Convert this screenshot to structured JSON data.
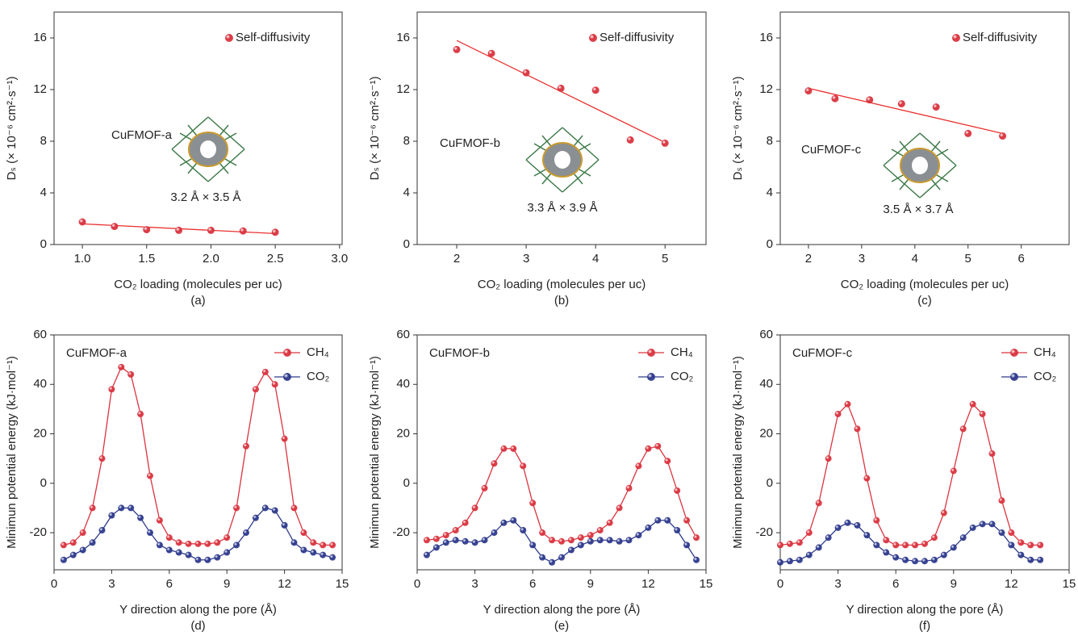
{
  "chart_data": [
    {
      "type": "scatter",
      "panel_label": "(a)",
      "xlabel": "CO₂ loading (molecules per uc)",
      "ylabel": "Dₛ (× 10⁻⁶ cm²·s⁻¹)",
      "annotations": [
        "CuFMOF-a",
        "3.2 Å × 3.5 Å"
      ],
      "legend": "upper right",
      "x": [
        1.0,
        1.25,
        1.5,
        1.75,
        2.0,
        2.25,
        2.5
      ],
      "series": [
        {
          "name": "Self-diffusivity",
          "color": "#d9343f",
          "values": [
            1.75,
            1.4,
            1.15,
            1.1,
            1.1,
            1.05,
            0.95
          ]
        }
      ],
      "fit": {
        "color": "#e8312f",
        "x": [
          1.0,
          2.5
        ],
        "values": [
          1.6,
          0.85
        ]
      },
      "xlim": [
        0.78,
        3.02
      ],
      "ylim": [
        0,
        18
      ],
      "xticks": [
        {
          "value": 1,
          "label": "1.0"
        },
        1.5,
        {
          "value": 2,
          "label": "2.0"
        },
        2.5,
        {
          "value": 3,
          "label": "3.0"
        }
      ],
      "yticks": [
        0,
        4,
        8,
        12,
        16
      ]
    },
    {
      "type": "scatter",
      "panel_label": "(b)",
      "xlabel": "CO₂ loading (molecules per uc)",
      "ylabel": "Dₛ (× 10⁻⁶ cm²·s⁻¹)",
      "annotations": [
        "CuFMOF-b",
        "3.3 Å × 3.9 Å"
      ],
      "legend": "upper right",
      "x": [
        2,
        2.5,
        3,
        3.5,
        4,
        4.5,
        5
      ],
      "series": [
        {
          "name": "Self-diffusivity",
          "color": "#d9343f",
          "values": [
            15.1,
            14.8,
            13.3,
            12.1,
            11.95,
            8.1,
            7.85
          ]
        }
      ],
      "fit": {
        "color": "#e8312f",
        "x": [
          2,
          5
        ],
        "values": [
          15.8,
          7.9
        ]
      },
      "xlim": [
        1.43,
        5.59
      ],
      "ylim": [
        0,
        18
      ],
      "xticks": [
        2,
        3,
        4,
        5
      ],
      "yticks": [
        0,
        4,
        8,
        12,
        16
      ]
    },
    {
      "type": "scatter",
      "panel_label": "(c)",
      "xlabel": "CO₂ loading (molecules per uc)",
      "ylabel": "Dₛ (× 10⁻⁶ cm²·s⁻¹)",
      "annotations": [
        "CuFMOF-c",
        "3.5 Å × 3.7 Å"
      ],
      "legend": "upper right",
      "x": [
        2,
        2.5,
        3.15,
        3.75,
        4.4,
        5,
        5.65
      ],
      "series": [
        {
          "name": "Self-diffusivity",
          "color": "#d9343f",
          "values": [
            11.9,
            11.3,
            11.2,
            10.9,
            10.65,
            8.6,
            8.4
          ]
        }
      ],
      "fit": {
        "color": "#e8312f",
        "x": [
          2,
          5.65
        ],
        "values": [
          12.1,
          8.6
        ]
      },
      "xlim": [
        1.47,
        6.9
      ],
      "ylim": [
        0,
        18
      ],
      "xticks": [
        2,
        3,
        4,
        5,
        6
      ],
      "yticks": [
        0,
        4,
        8,
        12,
        16
      ]
    },
    {
      "type": "line",
      "panel_label": "(d)",
      "xlabel": "Y direction along the pore (Å)",
      "ylabel": "Minimun potential energy (kJ·mol⁻¹)",
      "annotations": [
        "CuFMOF-a"
      ],
      "legend": "upper right",
      "x": [
        0.5,
        1,
        1.5,
        2,
        2.5,
        3,
        3.5,
        4,
        4.5,
        5,
        5.5,
        6,
        6.5,
        7,
        7.5,
        8,
        8.5,
        9,
        9.5,
        10,
        10.5,
        11,
        11.5,
        12,
        12.5,
        13,
        13.5,
        14,
        14.5
      ],
      "series": [
        {
          "name": "CH₄",
          "color": "#d9343f",
          "values": [
            -25,
            -24,
            -20,
            -10,
            10,
            38,
            47,
            44,
            28,
            3,
            -15,
            -22,
            -24,
            -24.5,
            -24.5,
            -24.5,
            -24,
            -22,
            -10,
            15,
            38,
            45,
            40,
            18,
            -10,
            -20,
            -24,
            -25,
            -25
          ]
        },
        {
          "name": "CO₂",
          "color": "#2e3a8c",
          "values": [
            -31,
            -29,
            -27,
            -24,
            -19,
            -13,
            -10,
            -10,
            -14,
            -20,
            -25,
            -27,
            -28,
            -29,
            -31,
            -31,
            -30,
            -28,
            -25,
            -20,
            -14,
            -10,
            -11,
            -17,
            -24,
            -27,
            -28,
            -29,
            -30
          ]
        }
      ],
      "xlim": [
        0,
        15
      ],
      "ylim": [
        -35,
        60
      ],
      "xticks": [
        0,
        3,
        6,
        9,
        12,
        15
      ],
      "yticks": [
        -20,
        0,
        20,
        40,
        60
      ]
    },
    {
      "type": "line",
      "panel_label": "(e)",
      "xlabel": "Y direction along the pore (Å)",
      "ylabel": "Minimun potential energy (kJ·mol⁻¹)",
      "annotations": [
        "CuFMOF-b"
      ],
      "legend": "upper right",
      "x": [
        0.5,
        1,
        1.5,
        2,
        2.5,
        3,
        3.5,
        4,
        4.5,
        5,
        5.5,
        6,
        6.5,
        7,
        7.5,
        8,
        8.5,
        9,
        9.5,
        10,
        10.5,
        11,
        11.5,
        12,
        12.5,
        13,
        13.5,
        14,
        14.5
      ],
      "series": [
        {
          "name": "CH₄",
          "color": "#d9343f",
          "values": [
            -23,
            -22.5,
            -21,
            -19,
            -16,
            -10,
            -2,
            8,
            14,
            14,
            7,
            -8,
            -20,
            -23,
            -23.5,
            -23,
            -22,
            -21,
            -19,
            -16,
            -10,
            -2,
            7,
            14,
            15,
            9,
            -3,
            -15,
            -22
          ]
        },
        {
          "name": "CO₂",
          "color": "#2e3a8c",
          "values": [
            -29,
            -26,
            -24,
            -23,
            -23.5,
            -24,
            -23,
            -20,
            -16,
            -15,
            -19,
            -25,
            -30,
            -32,
            -30,
            -27,
            -25,
            -23.5,
            -23,
            -23,
            -23.5,
            -23,
            -21,
            -18,
            -15,
            -15,
            -19,
            -25,
            -31
          ]
        }
      ],
      "xlim": [
        0,
        15
      ],
      "ylim": [
        -35,
        60
      ],
      "xticks": [
        0,
        3,
        6,
        9,
        12,
        15
      ],
      "yticks": [
        -20,
        0,
        20,
        40,
        60
      ]
    },
    {
      "type": "line",
      "panel_label": "(f)",
      "xlabel": "Y direction along the pore (Å)",
      "ylabel": "Minimun potential energy (kJ·mol⁻¹)",
      "annotations": [
        "CuFMOF-c"
      ],
      "legend": "upper right",
      "x": [
        0,
        0.5,
        1,
        1.5,
        2,
        2.5,
        3,
        3.5,
        4,
        4.5,
        5,
        5.5,
        6,
        6.5,
        7,
        7.5,
        8,
        8.5,
        9,
        9.5,
        10,
        10.5,
        11,
        11.5,
        12,
        12.5,
        13,
        13.5
      ],
      "series": [
        {
          "name": "CH₄",
          "color": "#d9343f",
          "values": [
            -25,
            -24.5,
            -24,
            -20,
            -8,
            10,
            28,
            32,
            22,
            2,
            -15,
            -23,
            -25,
            -25,
            -25,
            -24.5,
            -22,
            -12,
            5,
            22,
            32,
            28,
            12,
            -7,
            -20,
            -24,
            -25,
            -25
          ]
        },
        {
          "name": "CO₂",
          "color": "#2e3a8c",
          "values": [
            -32,
            -31.5,
            -31,
            -29,
            -26,
            -22,
            -18,
            -16,
            -17,
            -21,
            -25,
            -28,
            -30,
            -31,
            -31.5,
            -31.5,
            -31,
            -29,
            -26,
            -22,
            -18,
            -16.5,
            -16.5,
            -20,
            -25,
            -29,
            -31,
            -31
          ]
        }
      ],
      "xlim": [
        0,
        15
      ],
      "ylim": [
        -35,
        60
      ],
      "xticks": [
        0,
        3,
        6,
        9,
        12,
        15
      ],
      "yticks": [
        -20,
        0,
        20,
        40,
        60
      ]
    }
  ]
}
